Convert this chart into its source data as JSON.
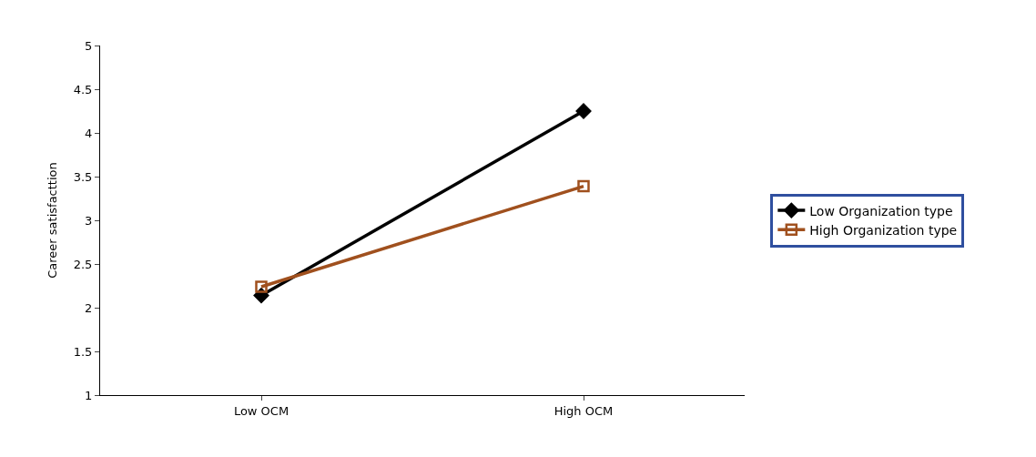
{
  "chart_data": {
    "type": "line",
    "ylabel": "Career satisfacttion",
    "categories": [
      "Low OCM",
      "High OCM"
    ],
    "series": [
      {
        "name": "Low Organization type",
        "color": "#000000",
        "values": [
          2.14,
          4.25
        ],
        "marker": "diamond"
      },
      {
        "name": "High Organization type",
        "color": "#a0501e",
        "values": [
          2.24,
          3.39
        ],
        "marker": "square-open"
      }
    ],
    "ylim": [
      1,
      5
    ],
    "yticks": [
      1,
      1.5,
      2,
      2.5,
      3,
      3.5,
      4,
      4.5,
      5
    ],
    "legend": "right",
    "line_style": "solid"
  }
}
